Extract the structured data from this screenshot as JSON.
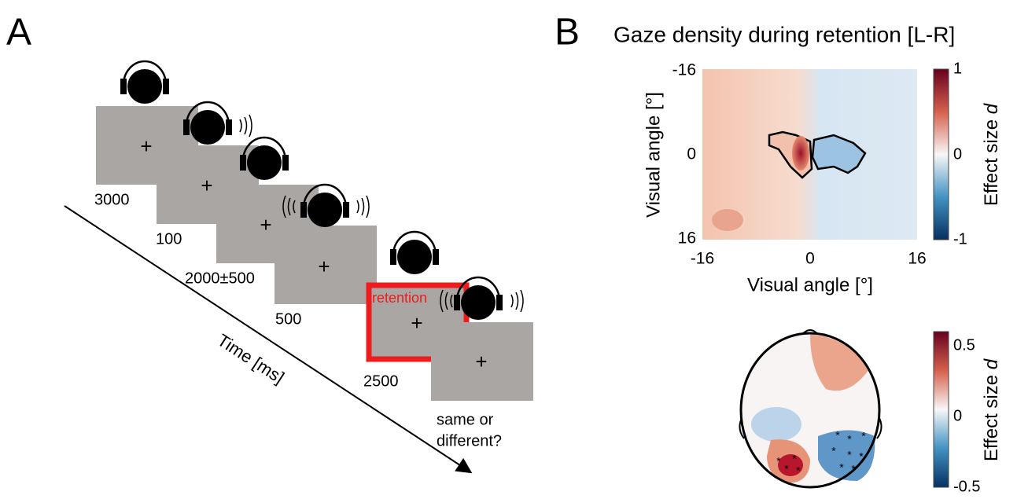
{
  "panel_a": {
    "label": "A",
    "durations": [
      "3000",
      "100",
      "2000±500",
      "500",
      "2500"
    ],
    "retention_label": "retention",
    "time_axis": "Time [ms]",
    "question": [
      "same or",
      "different?"
    ]
  },
  "panel_b": {
    "label": "B",
    "title": "Gaze density during retention [L-R]",
    "gaze_map": {
      "xlabel": "Visual angle [°]",
      "ylabel": "Visual angle [°]",
      "xticks": [
        "-16",
        "0",
        "16"
      ],
      "yticks": [
        "-16",
        "0",
        "16"
      ],
      "colorbar_label": "Effect size",
      "colorbar_symbol": "d",
      "colorbar_ticks": [
        "1",
        "0",
        "-1"
      ]
    },
    "topography": {
      "colorbar_label": "Effect size",
      "colorbar_symbol": "d",
      "colorbar_ticks": [
        "0.5",
        "0",
        "-0.5"
      ]
    }
  }
}
